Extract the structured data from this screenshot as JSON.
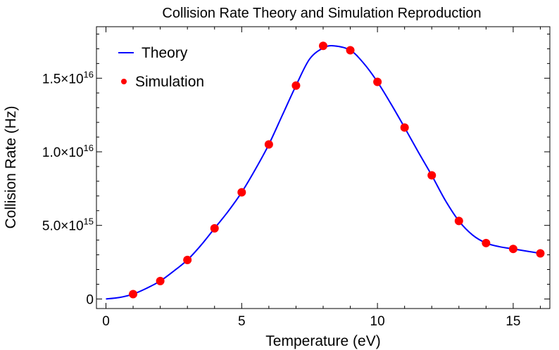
{
  "chart_data": {
    "type": "line",
    "title": "Collision Rate Theory and Simulation Reproduction",
    "xlabel": "Temperature (eV)",
    "ylabel": "Collision Rate (Hz)",
    "xlim": [
      -0.35,
      16.35
    ],
    "ylim": [
      -650000000000000.0,
      1.85e+16
    ],
    "x_major_ticks": [
      0,
      5,
      10,
      15
    ],
    "x_tick_labels": [
      "0",
      "5",
      "10",
      "15"
    ],
    "y_major_ticks": [
      0,
      5000000000000000.0,
      1e+16,
      1.5e+16
    ],
    "y_tick_labels": [
      {
        "mantissa": "0",
        "exponent": ""
      },
      {
        "mantissa": "5.0×10",
        "exponent": "15"
      },
      {
        "mantissa": "1.0×10",
        "exponent": "16"
      },
      {
        "mantissa": "1.5×10",
        "exponent": "16"
      }
    ],
    "legend_position": "top-left",
    "series": [
      {
        "name": "Theory",
        "kind": "line",
        "color": "#0000ff",
        "x": [
          0,
          0.5,
          1,
          1.5,
          2,
          2.5,
          3,
          3.5,
          4,
          4.5,
          5,
          5.5,
          6,
          6.5,
          7,
          7.5,
          8,
          8.4,
          9,
          9.5,
          10,
          10.5,
          11,
          11.5,
          12,
          12.5,
          13,
          13.5,
          14,
          14.5,
          15,
          15.5,
          16
        ],
        "y": [
          0,
          100000000000000.0,
          330000000000000.0,
          730000000000000.0,
          1220000000000000.0,
          1900000000000000.0,
          2650000000000000.0,
          3650000000000000.0,
          4800000000000000.0,
          5950000000000000.0,
          7250000000000000.0,
          8800000000000000.0,
          1.05e+16,
          1.25e+16,
          1.45e+16,
          1.63e+16,
          1.705e+16,
          1.72e+16,
          1.69e+16,
          1.6e+16,
          1.475e+16,
          1.325e+16,
          1.165e+16,
          1e+16,
          8400000000000000.0,
          6700000000000000.0,
          5300000000000000.0,
          4350000000000000.0,
          3800000000000000.0,
          3550000000000000.0,
          3400000000000000.0,
          3250000000000000.0,
          3100000000000000.0
        ]
      },
      {
        "name": "Simulation",
        "kind": "scatter",
        "color": "#ff0000",
        "x": [
          1,
          2,
          3,
          4,
          5,
          6,
          7,
          8,
          9,
          10,
          11,
          12,
          13,
          14,
          15,
          16
        ],
        "y": [
          330000000000000.0,
          1220000000000000.0,
          2650000000000000.0,
          4800000000000000.0,
          7250000000000000.0,
          1.05e+16,
          1.45e+16,
          1.72e+16,
          1.69e+16,
          1.475e+16,
          1.165e+16,
          8400000000000000.0,
          5300000000000000.0,
          3800000000000000.0,
          3400000000000000.0,
          3100000000000000.0
        ]
      }
    ]
  }
}
